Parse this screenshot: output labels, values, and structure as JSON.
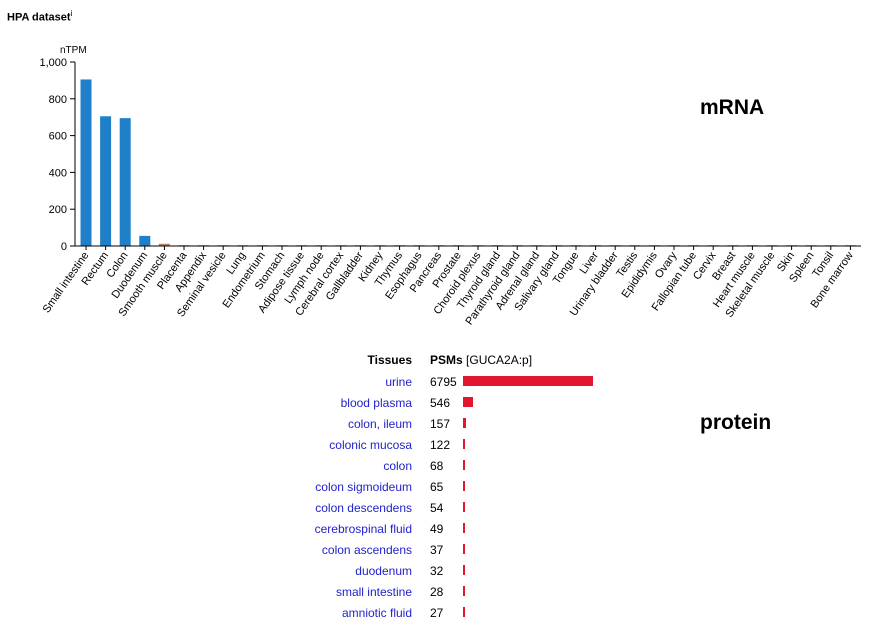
{
  "header": {
    "title": "HPA dataset",
    "info_marker": "i"
  },
  "labels": {
    "mrna": "mRNA",
    "protein": "protein"
  },
  "colors": {
    "bar_blue": "#1f7fc8",
    "bar_brown": "#b98068",
    "protein_bar": "#e2172f",
    "link": "#2222cc"
  },
  "chart_data": [
    {
      "type": "bar",
      "unit_label": "nTPM",
      "ylim": [
        0,
        1000
      ],
      "yticks": [
        "0",
        "200",
        "400",
        "600",
        "800",
        "1,000"
      ],
      "ytick_values": [
        0,
        200,
        400,
        600,
        800,
        1000
      ],
      "categories": [
        "Small intestine",
        "Rectum",
        "Colon",
        "Duodenum",
        "Smooth muscle",
        "Placenta",
        "Appendix",
        "Seminal vesicle",
        "Lung",
        "Endometrium",
        "Stomach",
        "Adipose tissue",
        "Lymph node",
        "Cerebral cortex",
        "Gallbladder",
        "Kidney",
        "Thymus",
        "Esophagus",
        "Pancreas",
        "Prostate",
        "Choroid plexus",
        "Thyroid gland",
        "Parathyroid gland",
        "Adrenal gland",
        "Salivary gland",
        "Tongue",
        "Liver",
        "Urinary bladder",
        "Testis",
        "Epididymis",
        "Ovary",
        "Fallopian tube",
        "Cervix",
        "Breast",
        "Heart muscle",
        "Skeletal muscle",
        "Skin",
        "Spleen",
        "Tonsil",
        "Bone marrow"
      ],
      "values": [
        905,
        705,
        695,
        55,
        12,
        4,
        3,
        1,
        1,
        1,
        1,
        0.5,
        0.5,
        0.5,
        0.5,
        0.5,
        0.5,
        0.5,
        0.5,
        0.5,
        0.5,
        0.5,
        0.5,
        0.5,
        0.5,
        0.5,
        0.5,
        0.5,
        0.5,
        0.5,
        0.5,
        0.5,
        0.5,
        0.5,
        0.5,
        0.5,
        0.5,
        0.5,
        0.5,
        0.5
      ],
      "bar_colors": [
        "#1f7fc8",
        "#1f7fc8",
        "#1f7fc8",
        "#1f7fc8",
        "#b98068",
        "#b98068",
        "#b98068",
        "#b98068",
        "#b98068",
        "#b98068",
        "#b98068",
        "#b98068",
        "#b98068",
        "#b98068",
        "#b98068",
        "#b98068",
        "#b98068",
        "#b98068",
        "#b98068",
        "#b98068",
        "#b98068",
        "#b98068",
        "#b98068",
        "#b98068",
        "#b98068",
        "#b98068",
        "#b98068",
        "#b98068",
        "#b98068",
        "#b98068",
        "#b98068",
        "#b98068",
        "#b98068",
        "#b98068",
        "#b98068",
        "#b98068",
        "#b98068",
        "#b98068",
        "#b98068",
        "#b98068"
      ]
    },
    {
      "type": "bar",
      "orientation": "horizontal",
      "columns": {
        "tissue": "Tissues",
        "psm": "PSMs",
        "gene": "[GUCA2A:p]"
      },
      "rows": [
        {
          "tissue": "urine",
          "psm": 6795
        },
        {
          "tissue": "blood plasma",
          "psm": 546
        },
        {
          "tissue": "colon, ileum",
          "psm": 157
        },
        {
          "tissue": "colonic mucosa",
          "psm": 122
        },
        {
          "tissue": "colon",
          "psm": 68
        },
        {
          "tissue": "colon sigmoideum",
          "psm": 65
        },
        {
          "tissue": "colon descendens",
          "psm": 54
        },
        {
          "tissue": "cerebrospinal fluid",
          "psm": 49
        },
        {
          "tissue": "colon ascendens",
          "psm": 37
        },
        {
          "tissue": "duodenum",
          "psm": 32
        },
        {
          "tissue": "small intestine",
          "psm": 28
        },
        {
          "tissue": "amniotic fluid",
          "psm": 27
        }
      ]
    }
  ]
}
